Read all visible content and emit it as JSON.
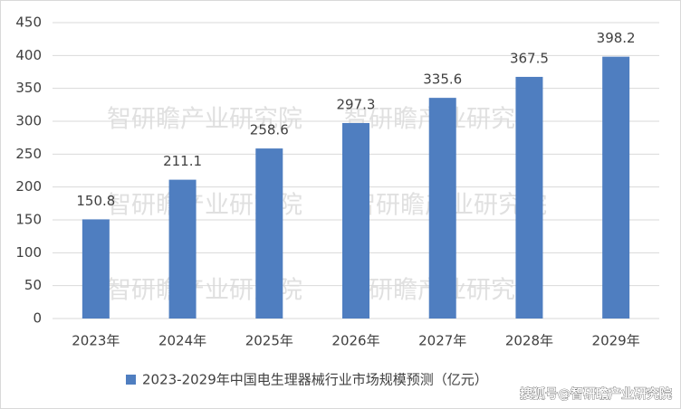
{
  "chart_data": {
    "type": "bar",
    "categories": [
      "2023年",
      "2024年",
      "2025年",
      "2026年",
      "2027年",
      "2028年",
      "2029年"
    ],
    "series": [
      {
        "name": "2023-2029年中国电生理器械行业市场规模预测（亿元）",
        "color": "#4f7ec0",
        "values": [
          150.8,
          211.1,
          258.6,
          297.3,
          335.6,
          367.5,
          398.2
        ]
      }
    ],
    "ylim": [
      0,
      450
    ],
    "yticks": [
      0,
      50,
      100,
      150,
      200,
      250,
      300,
      350,
      400,
      450
    ],
    "grid": true,
    "legend": "bottom",
    "watermarks": [
      "智研瞻产业研究院",
      "智研瞻产业研究院",
      "智研瞻产业研究院",
      "智研瞻产业研究院",
      "智研瞻产业研究院",
      "智研瞻产业研究院"
    ],
    "source": "搜狐号@智研瞻产业研究院"
  }
}
